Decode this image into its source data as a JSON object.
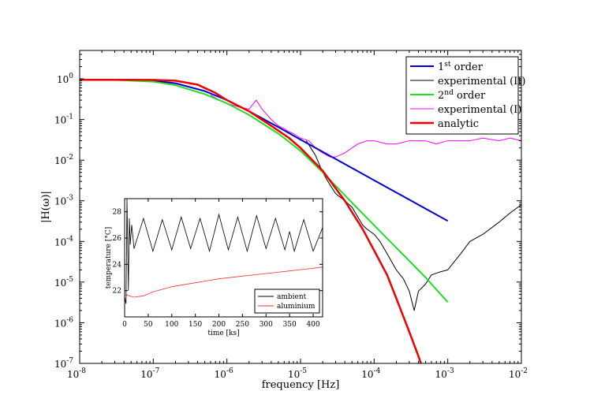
{
  "chart_data": [
    {
      "type": "line",
      "xlabel": "frequency [Hz]",
      "ylabel": "|H(ω)|",
      "xscale": "log",
      "yscale": "log",
      "xlim": [
        1e-08,
        0.01
      ],
      "ylim": [
        1e-07,
        5
      ],
      "x_ticks": [
        "10",
        "10",
        "10",
        "10",
        "10",
        "10",
        "10"
      ],
      "x_tick_exponents": [
        "-8",
        "-7",
        "-6",
        "-5",
        "-4",
        "-3",
        "-2"
      ],
      "y_ticks": [
        "10",
        "10",
        "10",
        "10",
        "10",
        "10",
        "10",
        "10"
      ],
      "y_tick_exponents": [
        "0",
        "-1",
        "-2",
        "-3",
        "-4",
        "-5",
        "-6",
        "-7"
      ],
      "legend_position": "top-right",
      "series": [
        {
          "name": "1st order",
          "name_main": "1",
          "name_sup": "st",
          "name_rest": " order",
          "color": "#0000cc",
          "x": [
            1e-08,
            3e-08,
            1e-07,
            2e-07,
            5e-07,
            1e-06,
            2e-06,
            5e-06,
            1e-05,
            2e-05,
            5e-05,
            0.0001,
            0.0002,
            0.0005,
            0.001
          ],
          "y": [
            0.95,
            0.94,
            0.9,
            0.78,
            0.5,
            0.3,
            0.16,
            0.065,
            0.032,
            0.016,
            0.0064,
            0.0032,
            0.0016,
            0.00064,
            0.00032
          ]
        },
        {
          "name": "experimental (II)",
          "color": "#000000",
          "x": [
            1.2e-05,
            1.6e-05,
            2e-05,
            2.5e-05,
            3e-05,
            4e-05,
            5e-05,
            6e-05,
            7e-05,
            8e-05,
            0.0001,
            0.00012,
            0.00015,
            0.0002,
            0.00025,
            0.0003,
            0.00035,
            0.0004,
            0.0005,
            0.0006,
            0.0008,
            0.001,
            0.0015,
            0.002,
            0.003,
            0.005,
            0.007,
            0.01
          ],
          "y": [
            0.03,
            0.013,
            0.005,
            0.0025,
            0.0015,
            0.001,
            0.0007,
            0.0004,
            0.00025,
            0.0002,
            0.00015,
            0.0001,
            5e-05,
            2e-05,
            1.2e-05,
            6e-06,
            2e-06,
            6e-06,
            9e-06,
            1.5e-05,
            1.8e-05,
            2e-05,
            5e-05,
            0.0001,
            0.00015,
            0.0003,
            0.0005,
            0.0008
          ]
        },
        {
          "name": "2nd order",
          "name_main": "2",
          "name_sup": "nd",
          "name_rest": " order",
          "color": "#22dd22",
          "x": [
            1e-08,
            3e-08,
            1e-07,
            2e-07,
            5e-07,
            1e-06,
            2e-06,
            5e-06,
            1e-05,
            2e-05,
            5e-05,
            0.0001,
            0.0002,
            0.0005,
            0.001
          ],
          "y": [
            0.95,
            0.94,
            0.85,
            0.7,
            0.42,
            0.25,
            0.13,
            0.045,
            0.017,
            0.005,
            0.0009,
            0.00025,
            7e-05,
            1.3e-05,
            3.2e-06
          ]
        },
        {
          "name": "experimental (I)",
          "color": "#ff00ff",
          "x": [
            6e-07,
            8e-07,
            1e-06,
            1.5e-06,
            2e-06,
            2.5e-06,
            3e-06,
            4e-06,
            5e-06,
            6e-06,
            7e-06,
            8e-06,
            1e-05,
            1.3e-05,
            1.6e-05,
            2e-05,
            2.5e-05,
            3e-05,
            4e-05,
            5e-05,
            6e-05,
            8e-05,
            0.0001,
            0.00015,
            0.0002,
            0.0003,
            0.0005,
            0.0007,
            0.001,
            0.002,
            0.003,
            0.005,
            0.007,
            0.01
          ],
          "y": [
            0.4,
            0.3,
            0.25,
            0.2,
            0.18,
            0.3,
            0.18,
            0.1,
            0.07,
            0.06,
            0.05,
            0.045,
            0.035,
            0.03,
            0.02,
            0.015,
            0.012,
            0.012,
            0.015,
            0.02,
            0.025,
            0.03,
            0.03,
            0.025,
            0.025,
            0.03,
            0.03,
            0.025,
            0.03,
            0.03,
            0.035,
            0.03,
            0.035,
            0.03
          ]
        },
        {
          "name": "analytic",
          "color": "#ee0000",
          "x": [
            1e-08,
            3e-08,
            1e-07,
            2e-07,
            4e-07,
            7e-07,
            1e-06,
            2e-06,
            4e-06,
            7e-06,
            1e-05,
            2e-05,
            4e-05,
            7e-05,
            0.0001,
            0.00015,
            0.0002,
            0.0003,
            0.0004,
            0.00045
          ],
          "y": [
            0.95,
            0.95,
            0.94,
            0.9,
            0.72,
            0.45,
            0.3,
            0.16,
            0.07,
            0.035,
            0.02,
            0.0055,
            0.001,
            0.0002,
            6e-05,
            1.5e-05,
            4e-06,
            6e-07,
            1.5e-07,
            8e-08
          ]
        }
      ]
    },
    {
      "type": "line",
      "xlabel": "time [ks]",
      "ylabel": "temperature [°C]",
      "xlim": [
        0,
        420
      ],
      "ylim": [
        20,
        29
      ],
      "x_ticks": [
        "0",
        "50",
        "100",
        "150",
        "200",
        "250",
        "300",
        "350",
        "400"
      ],
      "y_ticks": [
        "22",
        "24",
        "26",
        "28"
      ],
      "legend_position": "bottom-right",
      "series": [
        {
          "name": "ambient",
          "color": "#000000",
          "x": [
            0,
            3,
            5,
            8,
            10,
            12,
            15,
            20,
            40,
            60,
            80,
            100,
            120,
            140,
            160,
            180,
            200,
            220,
            240,
            260,
            280,
            300,
            320,
            340,
            350,
            360,
            380,
            400,
            420
          ],
          "y": [
            21.5,
            21.0,
            29.0,
            22.0,
            27.5,
            25.5,
            27.0,
            25.2,
            27.5,
            25.0,
            27.4,
            25.1,
            27.6,
            25.2,
            27.5,
            25.0,
            27.8,
            25.1,
            27.6,
            25.0,
            27.7,
            25.2,
            27.5,
            25.1,
            26.5,
            25.0,
            27.4,
            25.0,
            26.8
          ]
        },
        {
          "name": "aluminium",
          "color": "#ee3333",
          "x": [
            0,
            5,
            10,
            20,
            40,
            60,
            80,
            100,
            150,
            200,
            250,
            300,
            350,
            400,
            420
          ],
          "y": [
            21.2,
            21.7,
            21.6,
            21.5,
            21.6,
            21.9,
            22.1,
            22.3,
            22.6,
            22.9,
            23.1,
            23.3,
            23.5,
            23.7,
            23.8
          ]
        }
      ]
    }
  ]
}
